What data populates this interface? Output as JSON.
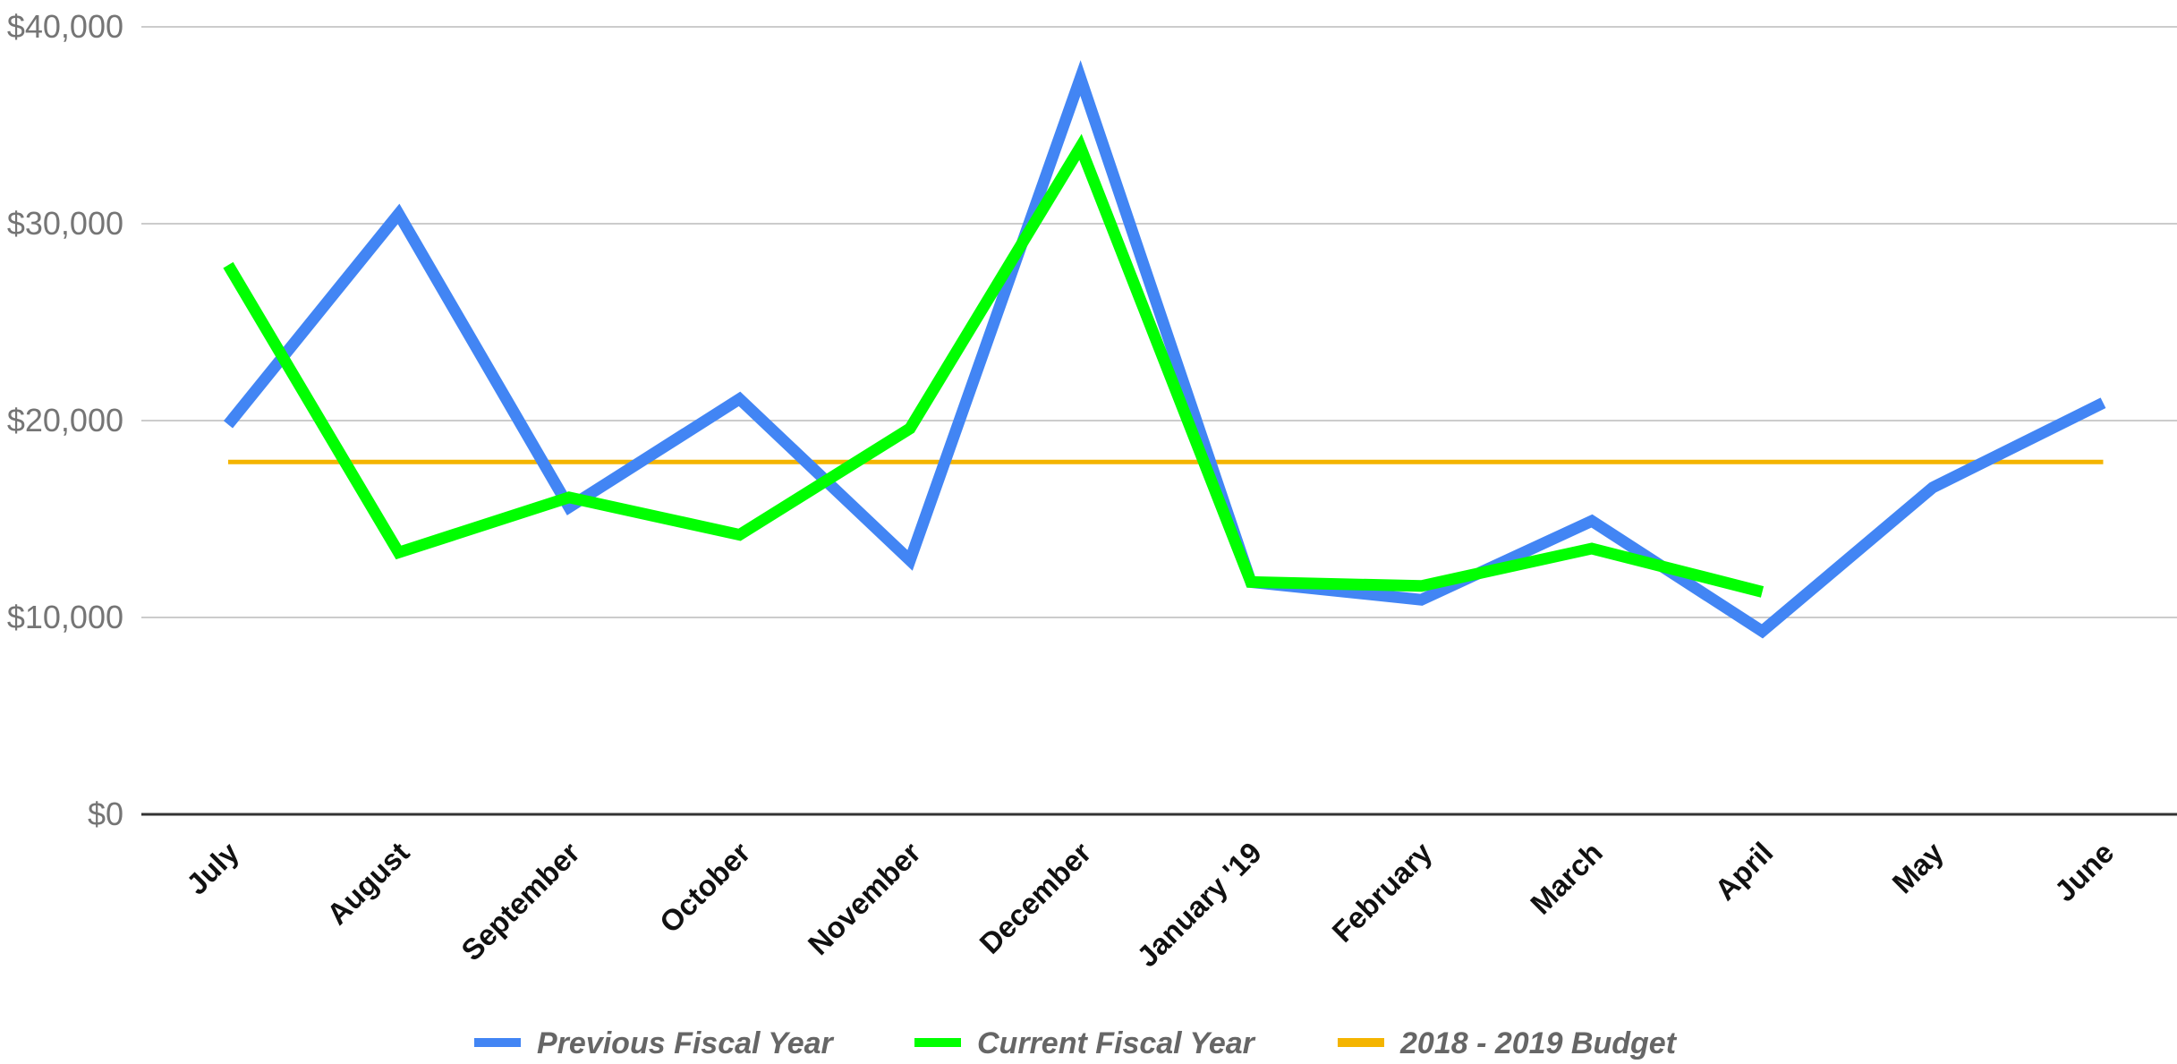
{
  "chart_data": {
    "type": "line",
    "categories": [
      "July",
      "August",
      "September",
      "October",
      "November",
      "December",
      "January '19",
      "February",
      "March",
      "April",
      "May",
      "June"
    ],
    "series": [
      {
        "name": "Previous Fiscal Year",
        "color": "#4285f4",
        "values": [
          19800,
          30500,
          15600,
          21100,
          12900,
          37400,
          11800,
          10900,
          14900,
          9300,
          16600,
          20900
        ]
      },
      {
        "name": "Current Fiscal Year",
        "color": "#00ff00",
        "values": [
          27900,
          13300,
          16100,
          14200,
          19600,
          33900,
          11800,
          11600,
          13500,
          11300,
          null,
          null
        ]
      },
      {
        "name": "2018 - 2019 Budget",
        "color": "#f4b400",
        "values": [
          17900,
          17900,
          17900,
          17900,
          17900,
          17900,
          17900,
          17900,
          17900,
          17900,
          17900,
          17900
        ]
      }
    ],
    "ylim": [
      0,
      40000
    ],
    "yticks": [
      0,
      10000,
      20000,
      30000,
      40000
    ],
    "ytick_labels": [
      "$0",
      "$10,000",
      "$20,000",
      "$30,000",
      "$40,000"
    ],
    "grid": true,
    "legend_position": "bottom"
  }
}
